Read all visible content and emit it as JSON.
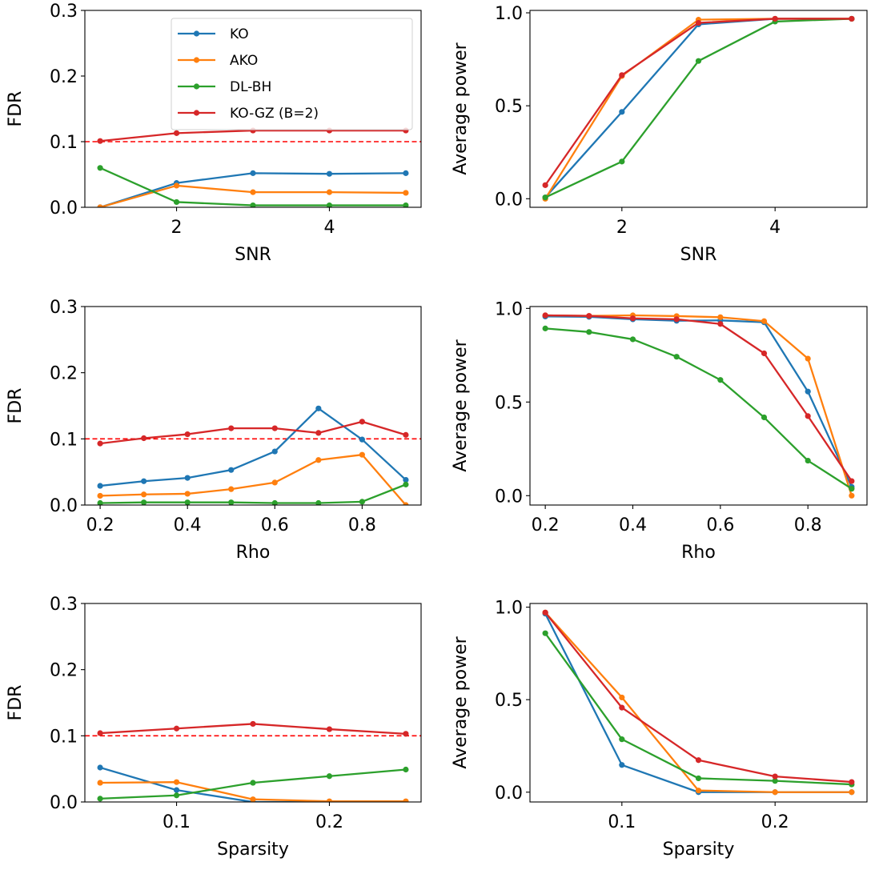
{
  "chart_data": [
    {
      "type": "line",
      "xlabel": "SNR",
      "ylabel": "FDR",
      "x": [
        1,
        2,
        3,
        4,
        5
      ],
      "xlim": [
        0.8,
        5.2
      ],
      "ylim": [
        0,
        0.3
      ],
      "xticks": [
        2,
        4
      ],
      "xtick_labels": [
        "2",
        "4"
      ],
      "yticks": [
        0,
        0.1,
        0.2,
        0.3
      ],
      "ytick_labels": [
        "0.0",
        "0.1",
        "0.2",
        "0.3"
      ],
      "reference_line": {
        "y": 0.1,
        "style": "dashed",
        "color": "#ff0000"
      },
      "legend": {
        "placement": "upper-center",
        "entries": [
          "KO",
          "AKO",
          "DL-BH",
          "KO-GZ (B=2)"
        ]
      },
      "series": [
        {
          "name": "KO",
          "color": "#1f77b4",
          "values": [
            0.0,
            0.037,
            0.052,
            0.051,
            0.052
          ]
        },
        {
          "name": "AKO",
          "color": "#ff7f0e",
          "values": [
            0.0,
            0.033,
            0.023,
            0.023,
            0.022
          ]
        },
        {
          "name": "DL-BH",
          "color": "#2ca02c",
          "values": [
            0.06,
            0.008,
            0.003,
            0.003,
            0.003
          ]
        },
        {
          "name": "KO-GZ (B=2)",
          "color": "#d62728",
          "values": [
            0.101,
            0.113,
            0.117,
            0.117,
            0.117
          ]
        }
      ]
    },
    {
      "type": "line",
      "xlabel": "SNR",
      "ylabel": "Average power",
      "x": [
        1,
        2,
        3,
        4,
        5
      ],
      "xlim": [
        0.8,
        5.2
      ],
      "ylim": [
        -0.046,
        1.013
      ],
      "xticks": [
        2,
        4
      ],
      "xtick_labels": [
        "2",
        "4"
      ],
      "yticks": [
        0,
        0.5,
        1.0
      ],
      "ytick_labels": [
        "0.0",
        "0.5",
        "1.0"
      ],
      "series": [
        {
          "name": "KO",
          "color": "#1f77b4",
          "values": [
            0.007,
            0.467,
            0.938,
            0.968,
            0.968
          ]
        },
        {
          "name": "AKO",
          "color": "#ff7f0e",
          "values": [
            0.0,
            0.66,
            0.963,
            0.968,
            0.968
          ]
        },
        {
          "name": "DL-BH",
          "color": "#2ca02c",
          "values": [
            0.007,
            0.2,
            0.741,
            0.953,
            0.968
          ]
        },
        {
          "name": "KO-GZ (B=2)",
          "color": "#d62728",
          "values": [
            0.073,
            0.665,
            0.946,
            0.968,
            0.968
          ]
        }
      ]
    },
    {
      "type": "line",
      "xlabel": "Rho",
      "ylabel": "FDR",
      "x": [
        0.2,
        0.3,
        0.4,
        0.5,
        0.6,
        0.7,
        0.8,
        0.9
      ],
      "xlim": [
        0.165,
        0.935
      ],
      "ylim": [
        0,
        0.3
      ],
      "xticks": [
        0.2,
        0.4,
        0.6,
        0.8
      ],
      "xtick_labels": [
        "0.2",
        "0.4",
        "0.6",
        "0.8"
      ],
      "yticks": [
        0,
        0.1,
        0.2,
        0.3
      ],
      "ytick_labels": [
        "0.0",
        "0.1",
        "0.2",
        "0.3"
      ],
      "reference_line": {
        "y": 0.1,
        "style": "dashed",
        "color": "#ff0000"
      },
      "series": [
        {
          "name": "KO",
          "color": "#1f77b4",
          "values": [
            0.029,
            0.036,
            0.041,
            0.053,
            0.081,
            0.146,
            0.099,
            0.038
          ]
        },
        {
          "name": "AKO",
          "color": "#ff7f0e",
          "values": [
            0.014,
            0.016,
            0.017,
            0.024,
            0.034,
            0.068,
            0.076,
            0.0
          ]
        },
        {
          "name": "DL-BH",
          "color": "#2ca02c",
          "values": [
            0.003,
            0.004,
            0.004,
            0.004,
            0.003,
            0.003,
            0.005,
            0.031
          ]
        },
        {
          "name": "KO-GZ (B=2)",
          "color": "#d62728",
          "values": [
            0.093,
            0.101,
            0.107,
            0.116,
            0.116,
            0.109,
            0.126,
            0.106
          ]
        }
      ]
    },
    {
      "type": "line",
      "xlabel": "Rho",
      "ylabel": "Average power",
      "x": [
        0.2,
        0.3,
        0.4,
        0.5,
        0.6,
        0.7,
        0.8,
        0.9
      ],
      "xlim": [
        0.165,
        0.935
      ],
      "ylim": [
        -0.05,
        1.01
      ],
      "xticks": [
        0.2,
        0.4,
        0.6,
        0.8
      ],
      "xtick_labels": [
        "0.2",
        "0.4",
        "0.6",
        "0.8"
      ],
      "yticks": [
        0,
        0.5,
        1.0
      ],
      "ytick_labels": [
        "0.0",
        "0.5",
        "1.0"
      ],
      "series": [
        {
          "name": "KO",
          "color": "#1f77b4",
          "values": [
            0.957,
            0.955,
            0.942,
            0.934,
            0.936,
            0.926,
            0.556,
            0.047
          ]
        },
        {
          "name": "AKO",
          "color": "#ff7f0e",
          "values": [
            0.963,
            0.96,
            0.963,
            0.959,
            0.953,
            0.932,
            0.732,
            0.0
          ]
        },
        {
          "name": "DL-BH",
          "color": "#2ca02c",
          "values": [
            0.893,
            0.874,
            0.835,
            0.742,
            0.618,
            0.418,
            0.187,
            0.037
          ]
        },
        {
          "name": "KO-GZ (B=2)",
          "color": "#d62728",
          "values": [
            0.963,
            0.96,
            0.947,
            0.942,
            0.917,
            0.76,
            0.425,
            0.078
          ]
        }
      ]
    },
    {
      "type": "line",
      "xlabel": "Sparsity",
      "ylabel": "FDR",
      "x": [
        0.05,
        0.1,
        0.15,
        0.2,
        0.25
      ],
      "xlim": [
        0.04,
        0.26
      ],
      "ylim": [
        0,
        0.3
      ],
      "xticks": [
        0.1,
        0.2
      ],
      "xtick_labels": [
        "0.1",
        "0.2"
      ],
      "yticks": [
        0,
        0.1,
        0.2,
        0.3
      ],
      "ytick_labels": [
        "0.0",
        "0.1",
        "0.2",
        "0.3"
      ],
      "reference_line": {
        "y": 0.1,
        "style": "dashed",
        "color": "#ff0000"
      },
      "series": [
        {
          "name": "KO",
          "color": "#1f77b4",
          "values": [
            0.052,
            0.018,
            0.0,
            0.0,
            0.0
          ]
        },
        {
          "name": "AKO",
          "color": "#ff7f0e",
          "values": [
            0.029,
            0.03,
            0.004,
            0.001,
            0.001
          ]
        },
        {
          "name": "DL-BH",
          "color": "#2ca02c",
          "values": [
            0.005,
            0.01,
            0.029,
            0.039,
            0.049
          ]
        },
        {
          "name": "KO-GZ (B=2)",
          "color": "#d62728",
          "values": [
            0.104,
            0.111,
            0.118,
            0.11,
            0.103
          ]
        }
      ]
    },
    {
      "type": "line",
      "xlabel": "Sparsity",
      "ylabel": "Average power",
      "x": [
        0.05,
        0.1,
        0.15,
        0.2,
        0.25
      ],
      "xlim": [
        0.04,
        0.26
      ],
      "ylim": [
        -0.053,
        1.02
      ],
      "xticks": [
        0.1,
        0.2
      ],
      "xtick_labels": [
        "0.1",
        "0.2"
      ],
      "yticks": [
        0,
        0.5,
        1.0
      ],
      "ytick_labels": [
        "0.0",
        "0.5",
        "1.0"
      ],
      "series": [
        {
          "name": "KO",
          "color": "#1f77b4",
          "values": [
            0.965,
            0.147,
            0.0,
            0.0,
            0.0
          ]
        },
        {
          "name": "AKO",
          "color": "#ff7f0e",
          "values": [
            0.971,
            0.512,
            0.009,
            0.0,
            0.0
          ]
        },
        {
          "name": "DL-BH",
          "color": "#2ca02c",
          "values": [
            0.859,
            0.286,
            0.075,
            0.061,
            0.042
          ]
        },
        {
          "name": "KO-GZ (B=2)",
          "color": "#d62728",
          "values": [
            0.971,
            0.457,
            0.173,
            0.085,
            0.055
          ]
        }
      ]
    }
  ]
}
